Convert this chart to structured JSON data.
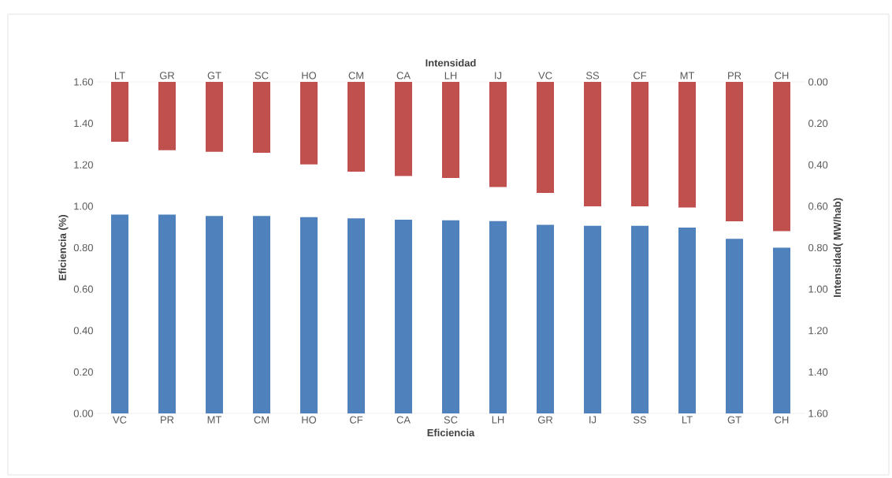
{
  "chart_data": [
    {
      "type": "bar",
      "categories": [
        "VC",
        "PR",
        "MT",
        "CM",
        "HO",
        "CF",
        "CA",
        "SC",
        "LH",
        "GR",
        "IJ",
        "SS",
        "LT",
        "GT",
        "CH"
      ],
      "color": "#4f81bd",
      "values": [
        0.96,
        0.96,
        0.953,
        0.953,
        0.947,
        0.942,
        0.935,
        0.932,
        0.928,
        0.91,
        0.905,
        0.905,
        0.897,
        0.843,
        0.8
      ],
      "xlabel": "Eficiencia",
      "ylabel": "Eficiencia (%)",
      "ylim": [
        0,
        1.6
      ],
      "yticks": [
        {
          "value": 0,
          "label": "0.00"
        },
        {
          "value": 0.2,
          "label": "0.20"
        },
        {
          "value": 0.4,
          "label": "0.40"
        },
        {
          "value": 0.6,
          "label": "0.60"
        },
        {
          "value": 0.8,
          "label": "0.80"
        },
        {
          "value": 1.0,
          "label": "1.00"
        },
        {
          "value": 1.2,
          "label": "1.20"
        },
        {
          "value": 1.4,
          "label": "1.40"
        },
        {
          "value": 1.6,
          "label": "1.60"
        }
      ]
    },
    {
      "type": "bar",
      "categories": [
        "LT",
        "GR",
        "GT",
        "SC",
        "HO",
        "CM",
        "CA",
        "LH",
        "IJ",
        "VC",
        "SS",
        "CF",
        "MT",
        "PR",
        "CH"
      ],
      "color": "#c0504d",
      "values": [
        0.289,
        0.33,
        0.337,
        0.342,
        0.398,
        0.433,
        0.454,
        0.464,
        0.507,
        0.536,
        0.6,
        0.6,
        0.606,
        0.673,
        0.72
      ],
      "xlabel": "Intensidad",
      "ylabel": "Intensidad( MW/hab)",
      "ylim": [
        1.6,
        0
      ],
      "yticks": [
        {
          "value": 0,
          "label": "0.00"
        },
        {
          "value": 0.2,
          "label": "0.20"
        },
        {
          "value": 0.4,
          "label": "0.40"
        },
        {
          "value": 0.6,
          "label": "0.60"
        },
        {
          "value": 0.8,
          "label": "0.80"
        },
        {
          "value": 1.0,
          "label": "1.00"
        },
        {
          "value": 1.2,
          "label": "1.20"
        },
        {
          "value": 1.4,
          "label": "1.40"
        },
        {
          "value": 1.6,
          "label": "1.60"
        }
      ]
    }
  ]
}
